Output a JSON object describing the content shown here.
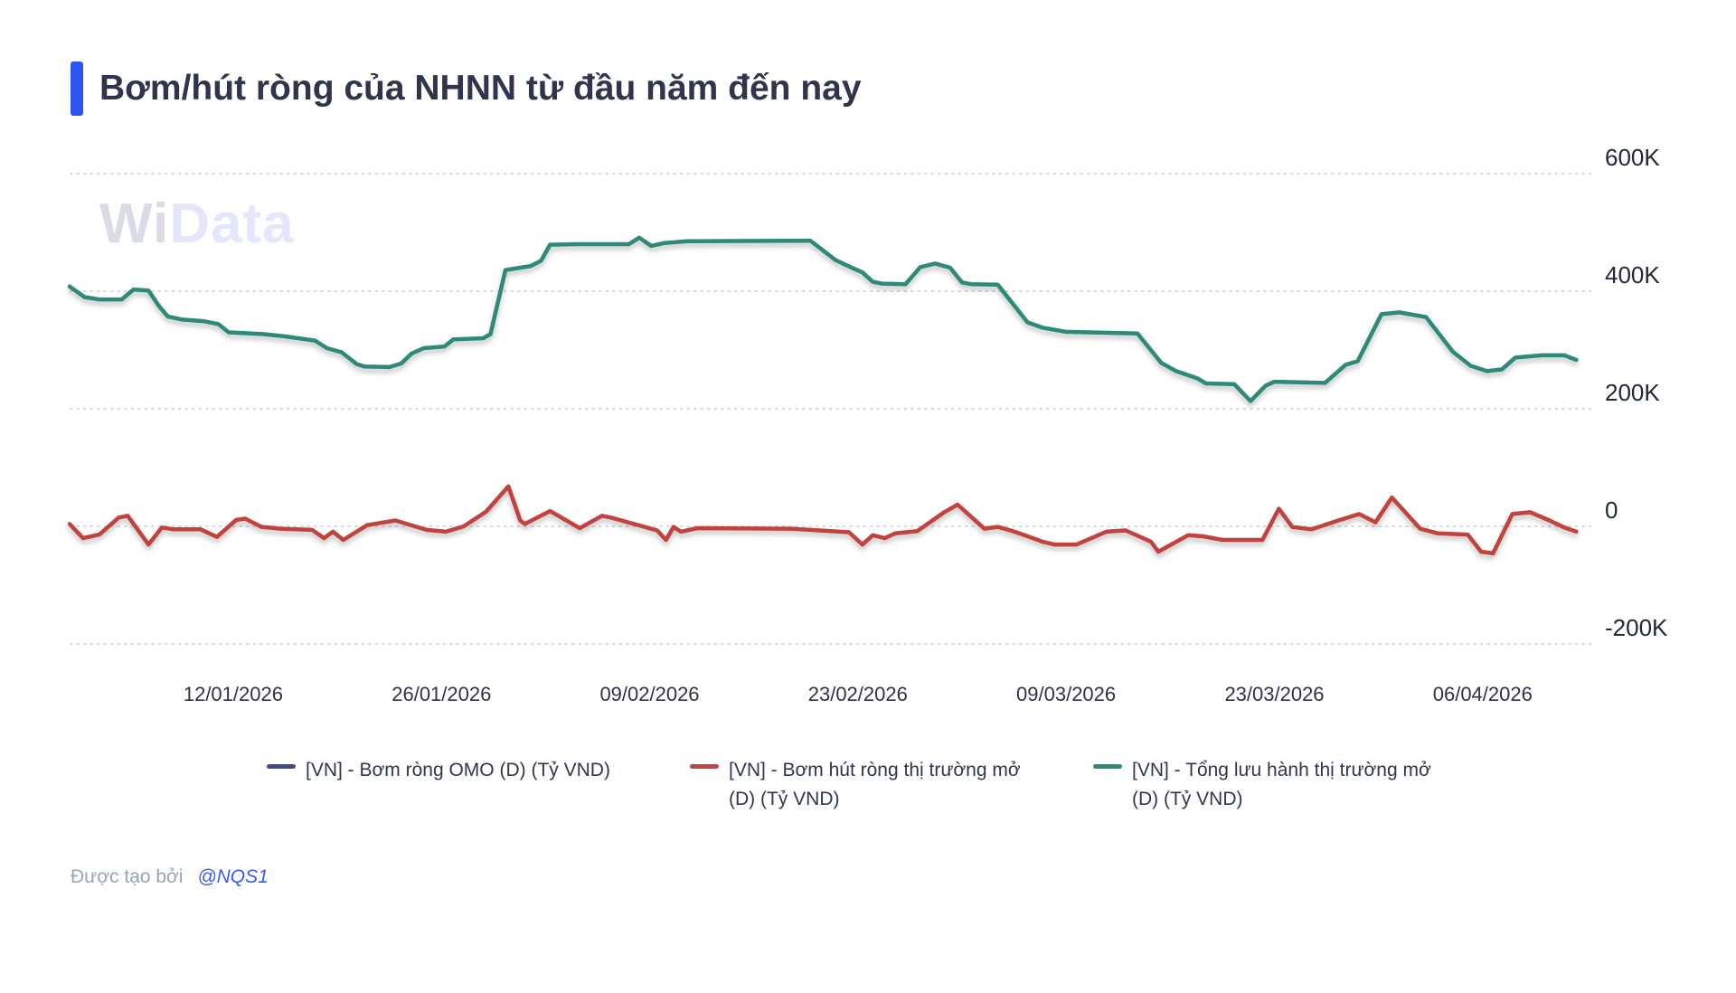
{
  "header": {
    "title": "Bơm/hút ròng của NHNN từ đầu năm đến nay",
    "accent_color": "#2e55f2"
  },
  "watermark": {
    "part1": "W",
    "part2": "i",
    "part3": "Data"
  },
  "footer": {
    "created_by": "Được tạo bởi",
    "author": "@NQS1"
  },
  "legend": [
    {
      "label": "[VN] - Bơm ròng OMO (D) (Tỷ VND)",
      "label2": "",
      "color": "#3d4a94"
    },
    {
      "label": "[VN] - Bơm hút ròng thị trường mở",
      "label2": "(D) (Tỷ VND)",
      "color": "#c2423d"
    },
    {
      "label": "[VN] - Tổng lưu hành thị trường mở",
      "label2": "(D) (Tỷ VND)",
      "color": "#2e8a78"
    }
  ],
  "chart_data": {
    "type": "line",
    "title": "Bơm/hút ròng của NHNN từ đầu năm đến nay",
    "value_unit": "Tỷ VND (axis shown in K = thousands of Tỷ VND)",
    "grid": "horizontal dotted",
    "legend_position": "bottom",
    "x_axis": {
      "start_date": "01/01/2026",
      "end_date": "11/04/2026",
      "tick_labels": [
        "12/01/2026",
        "26/01/2026",
        "09/02/2026",
        "23/02/2026",
        "09/03/2026",
        "23/03/2026",
        "06/04/2026"
      ],
      "tick_days": [
        11,
        25,
        39,
        53,
        67,
        81,
        95
      ]
    },
    "y_axis": {
      "tick_labels": [
        "600K",
        "400K",
        "200K",
        "0",
        "-200K"
      ],
      "tick_values": [
        600,
        400,
        200,
        0,
        -200
      ],
      "range_k": [
        -280,
        640
      ]
    },
    "series": [
      {
        "name": "[VN] - Bơm ròng OMO (D) (Tỷ VND)",
        "color": "#3d4a94",
        "note": "present in legend, no visible line on chart",
        "points": []
      },
      {
        "name": "[VN] - Bơm hút ròng thị trường mở (D) (Tỷ VND)",
        "color": "#c2423d",
        "points": [
          [
            0,
            4
          ],
          [
            0.9,
            -20
          ],
          [
            2,
            -14
          ],
          [
            3.3,
            15
          ],
          [
            3.9,
            18
          ],
          [
            5.3,
            -31
          ],
          [
            6.2,
            -2
          ],
          [
            7,
            -5
          ],
          [
            8.8,
            -5
          ],
          [
            9.9,
            -18
          ],
          [
            11.2,
            11
          ],
          [
            11.8,
            13
          ],
          [
            12.9,
            -1
          ],
          [
            14.2,
            -4
          ],
          [
            16.3,
            -6
          ],
          [
            17.1,
            -20
          ],
          [
            17.7,
            -9
          ],
          [
            18.4,
            -23
          ],
          [
            20,
            2
          ],
          [
            21.9,
            10
          ],
          [
            24,
            -6
          ],
          [
            25.3,
            -9
          ],
          [
            26.5,
            0
          ],
          [
            28,
            25
          ],
          [
            29.5,
            68
          ],
          [
            30.3,
            10
          ],
          [
            30.6,
            4
          ],
          [
            32.3,
            26
          ],
          [
            34.3,
            -3
          ],
          [
            35.8,
            18
          ],
          [
            36.4,
            15
          ],
          [
            39.5,
            -7
          ],
          [
            40.1,
            -23
          ],
          [
            40.6,
            -1
          ],
          [
            41.1,
            -9
          ],
          [
            42.2,
            -3
          ],
          [
            48.5,
            -4
          ],
          [
            52.4,
            -10
          ],
          [
            53.3,
            -31
          ],
          [
            54,
            -15
          ],
          [
            54.8,
            -20
          ],
          [
            55.5,
            -12
          ],
          [
            57,
            -8
          ],
          [
            58.8,
            24
          ],
          [
            59.7,
            37
          ],
          [
            61.5,
            -4
          ],
          [
            62.4,
            -1
          ],
          [
            63.4,
            -8
          ],
          [
            64.2,
            -15
          ],
          [
            65.4,
            -26
          ],
          [
            66.2,
            -31
          ],
          [
            67.7,
            -31
          ],
          [
            69.7,
            -9
          ],
          [
            71,
            -7
          ],
          [
            72.7,
            -26
          ],
          [
            73.2,
            -43
          ],
          [
            75.2,
            -15
          ],
          [
            76.2,
            -17
          ],
          [
            77.5,
            -23
          ],
          [
            80.2,
            -23
          ],
          [
            81.3,
            30
          ],
          [
            82.2,
            -1
          ],
          [
            83.5,
            -5
          ],
          [
            85.3,
            10
          ],
          [
            86.7,
            21
          ],
          [
            87.8,
            7
          ],
          [
            88.9,
            49
          ],
          [
            90.8,
            -4
          ],
          [
            92,
            -12
          ],
          [
            94,
            -14
          ],
          [
            94.9,
            -43
          ],
          [
            95.7,
            -46
          ],
          [
            97,
            21
          ],
          [
            98.2,
            24
          ],
          [
            99.5,
            10
          ],
          [
            100.5,
            -2
          ],
          [
            101.3,
            -9
          ]
        ]
      },
      {
        "name": "[VN] - Tổng lưu hành thị trường mở (D) (Tỷ VND)",
        "color": "#2e8a78",
        "points": [
          [
            0,
            408
          ],
          [
            1,
            390
          ],
          [
            2,
            386
          ],
          [
            3.5,
            386
          ],
          [
            4.3,
            403
          ],
          [
            5.3,
            401
          ],
          [
            6,
            375
          ],
          [
            6.6,
            357
          ],
          [
            7.5,
            352
          ],
          [
            9,
            349
          ],
          [
            10,
            344
          ],
          [
            10.7,
            330
          ],
          [
            13,
            327
          ],
          [
            14.5,
            323
          ],
          [
            16.5,
            316
          ],
          [
            17.3,
            303
          ],
          [
            18.3,
            296
          ],
          [
            19.3,
            276
          ],
          [
            19.8,
            272
          ],
          [
            21.5,
            271
          ],
          [
            22.3,
            277
          ],
          [
            23,
            294
          ],
          [
            23.8,
            303
          ],
          [
            25.2,
            306
          ],
          [
            25.8,
            318
          ],
          [
            27.8,
            320
          ],
          [
            28.3,
            327
          ],
          [
            29.3,
            436
          ],
          [
            31,
            443
          ],
          [
            31.7,
            452
          ],
          [
            32.3,
            479
          ],
          [
            34,
            480
          ],
          [
            37.6,
            480
          ],
          [
            38.3,
            491
          ],
          [
            39.1,
            477
          ],
          [
            40,
            482
          ],
          [
            41.5,
            485
          ],
          [
            49.8,
            486
          ],
          [
            51.5,
            453
          ],
          [
            52.5,
            441
          ],
          [
            53.3,
            432
          ],
          [
            54,
            416
          ],
          [
            54.6,
            413
          ],
          [
            56.2,
            412
          ],
          [
            57.2,
            441
          ],
          [
            58.2,
            447
          ],
          [
            59.2,
            440
          ],
          [
            60,
            415
          ],
          [
            60.6,
            412
          ],
          [
            62.4,
            411
          ],
          [
            64.4,
            347
          ],
          [
            65.4,
            338
          ],
          [
            67,
            331
          ],
          [
            71.8,
            328
          ],
          [
            73.4,
            278
          ],
          [
            74.4,
            264
          ],
          [
            75.8,
            252
          ],
          [
            76.4,
            243
          ],
          [
            78.3,
            242
          ],
          [
            79.4,
            213
          ],
          [
            80.4,
            239
          ],
          [
            81,
            246
          ],
          [
            84.4,
            244
          ],
          [
            85.8,
            275
          ],
          [
            86.6,
            281
          ],
          [
            88.2,
            361
          ],
          [
            89.4,
            364
          ],
          [
            91.2,
            356
          ],
          [
            93,
            297
          ],
          [
            94.2,
            273
          ],
          [
            95.3,
            264
          ],
          [
            96.3,
            267
          ],
          [
            97.2,
            287
          ],
          [
            99,
            291
          ],
          [
            100.5,
            291
          ],
          [
            101.3,
            283
          ]
        ]
      }
    ]
  }
}
